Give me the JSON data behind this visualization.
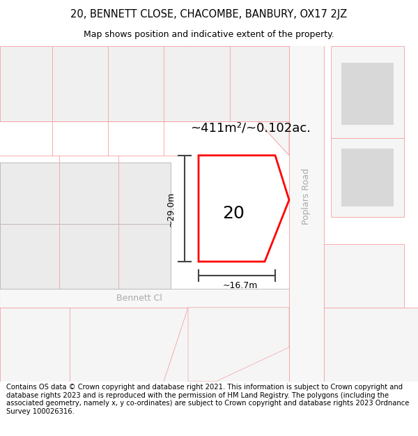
{
  "title_line1": "20, BENNETT CLOSE, CHACOMBE, BANBURY, OX17 2JZ",
  "title_line2": "Map shows position and indicative extent of the property.",
  "footer_text": "Contains OS data © Crown copyright and database right 2021. This information is subject to Crown copyright and database rights 2023 and is reproduced with the permission of HM Land Registry. The polygons (including the associated geometry, namely x, y co-ordinates) are subject to Crown copyright and database rights 2023 Ordnance Survey 100026316.",
  "area_label": "~411m²/~0.102ac.",
  "number_label": "20",
  "width_label": "~16.7m",
  "height_label": "~29.0m",
  "road_label_1": "Poplars Road",
  "road_label_2": "Bennett Cl",
  "map_bg": "#ffffff",
  "parcel_line_color": "#f5a0a0",
  "road_line_color": "#cccccc",
  "darker_road_color": "#bbbbbb",
  "plot_fill": "#ffffff",
  "plot_outline": "#ff0000",
  "building_fill": "#d8d8d8",
  "building_edge": "none",
  "dim_line_color": "#444444",
  "title_fontsize": 10.5,
  "subtitle_fontsize": 9,
  "footer_fontsize": 7.2,
  "area_fontsize": 13,
  "num_fontsize": 18,
  "dim_fontsize": 9,
  "road_fontsize": 9
}
